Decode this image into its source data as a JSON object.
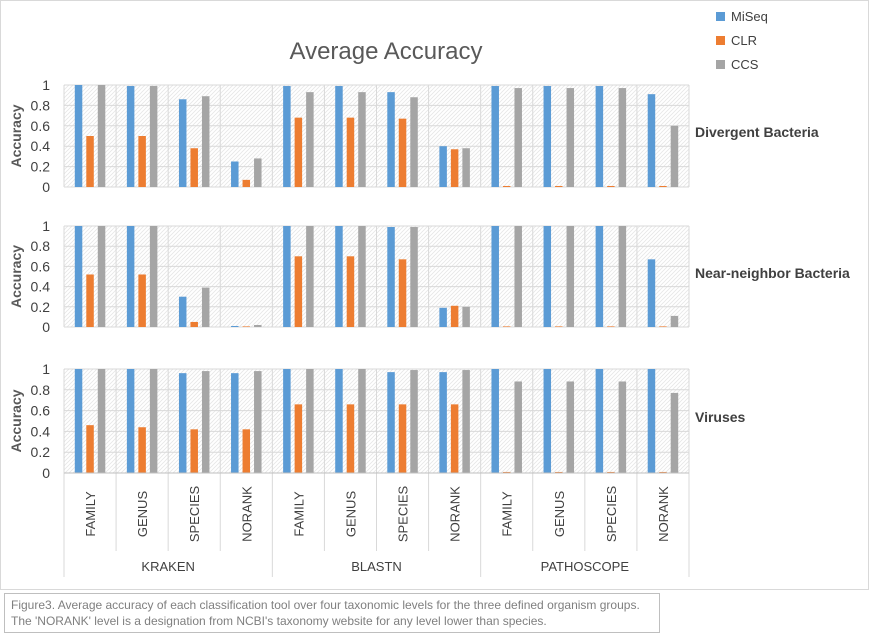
{
  "chart_data": {
    "type": "bar",
    "title": "Average Accuracy",
    "ylabel": "Accuracy",
    "ylim": [
      0,
      1
    ],
    "yticks": [
      "0",
      "0.2",
      "0.4",
      "0.6",
      "0.8",
      "1"
    ],
    "groups": [
      "KRAKEN",
      "BLASTN",
      "PATHOSCOPE"
    ],
    "categories": [
      "FAMILY",
      "GENUS",
      "SPECIES",
      "NORANK"
    ],
    "legend": {
      "position": "top-right",
      "entries": [
        "MiSeq",
        "CLR",
        "CCS"
      ]
    },
    "colors": {
      "MiSeq": "#5B9BD5",
      "CLR": "#ED7D31",
      "CCS": "#A5A5A5"
    },
    "panels": [
      {
        "label": "Divergent Bacteria",
        "series": [
          {
            "name": "MiSeq",
            "values": [
              1.0,
              0.99,
              0.86,
              0.25,
              0.99,
              0.99,
              0.93,
              0.4,
              0.99,
              0.99,
              0.99,
              0.91
            ]
          },
          {
            "name": "CLR",
            "values": [
              0.5,
              0.5,
              0.38,
              0.07,
              0.68,
              0.68,
              0.67,
              0.37,
              0.01,
              0.01,
              0.01,
              0.01
            ]
          },
          {
            "name": "CCS",
            "values": [
              1.0,
              0.99,
              0.89,
              0.28,
              0.93,
              0.93,
              0.88,
              0.38,
              0.97,
              0.97,
              0.97,
              0.6
            ]
          }
        ]
      },
      {
        "label": "Near-neighbor Bacteria",
        "series": [
          {
            "name": "MiSeq",
            "values": [
              1.0,
              1.0,
              0.3,
              0.01,
              1.0,
              1.0,
              0.99,
              0.19,
              1.0,
              1.0,
              1.0,
              0.67
            ]
          },
          {
            "name": "CLR",
            "values": [
              0.52,
              0.52,
              0.05,
              0.005,
              0.7,
              0.7,
              0.67,
              0.21,
              0.005,
              0.005,
              0.005,
              0.005
            ]
          },
          {
            "name": "CCS",
            "values": [
              1.0,
              1.0,
              0.39,
              0.02,
              1.0,
              1.0,
              0.99,
              0.2,
              1.0,
              1.0,
              1.0,
              0.11
            ]
          }
        ]
      },
      {
        "label": "Viruses",
        "series": [
          {
            "name": "MiSeq",
            "values": [
              1.0,
              1.0,
              0.96,
              0.96,
              1.0,
              1.0,
              0.97,
              0.97,
              1.0,
              1.0,
              1.0,
              1.0
            ]
          },
          {
            "name": "CLR",
            "values": [
              0.46,
              0.44,
              0.42,
              0.42,
              0.66,
              0.66,
              0.66,
              0.66,
              0.01,
              0.01,
              0.01,
              0.01
            ]
          },
          {
            "name": "CCS",
            "values": [
              1.0,
              1.0,
              0.98,
              0.98,
              1.0,
              1.0,
              0.99,
              0.99,
              0.88,
              0.88,
              0.88,
              0.77
            ]
          }
        ]
      }
    ]
  },
  "caption": "Figure3. Average accuracy of each classification tool over four taxonomic levels for the three defined organism groups. The 'NORANK' level is a designation from NCBI's taxonomy website for any level lower than species."
}
